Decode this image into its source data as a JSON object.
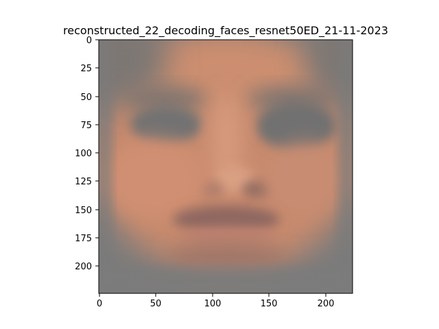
{
  "figure": {
    "title": "reconstructed_22_decoding_faces_resnet50ED_21-11-2023",
    "image_description_colors": {
      "background_gray": "#7a7a7a",
      "skin": "#c8876a",
      "skin_highlight": "#d89a7c",
      "eye_shadow": "#737373",
      "lip_shadow": "#9a6a5c"
    }
  },
  "chart_data": {
    "type": "image",
    "title": "reconstructed_22_decoding_faces_resnet50ED_21-11-2023",
    "xlabel": "",
    "ylabel": "",
    "xlim": [
      0,
      224
    ],
    "ylim": [
      224,
      0
    ],
    "xticks": [
      "0",
      "50",
      "100",
      "150",
      "200"
    ],
    "yticks": [
      "0",
      "25",
      "50",
      "75",
      "100",
      "125",
      "150",
      "175",
      "200"
    ],
    "grid": false
  }
}
